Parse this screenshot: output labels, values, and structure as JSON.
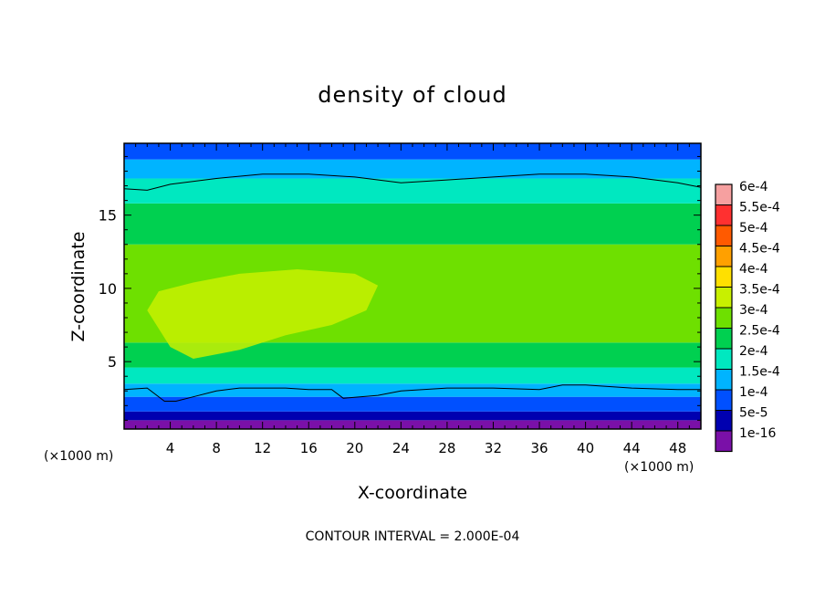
{
  "chart_data": {
    "type": "heatmap",
    "title": "density of cloud",
    "xlabel": "X-coordinate",
    "ylabel": "Z-coordinate",
    "x_unit": "(×1000 m)",
    "y_unit": "(×1000 m)",
    "xlim": [
      0,
      50
    ],
    "ylim": [
      0.4,
      19.9
    ],
    "x_ticks": [
      4,
      8,
      12,
      16,
      20,
      24,
      28,
      32,
      36,
      40,
      44,
      48
    ],
    "y_ticks": [
      5,
      10,
      15
    ],
    "footer": "CONTOUR INTERVAL = 2.000E-04",
    "colorbar": {
      "labels": [
        "6e-4",
        "5.5e-4",
        "5e-4",
        "4.5e-4",
        "4e-4",
        "3.5e-4",
        "3e-4",
        "2.5e-4",
        "2e-4",
        "1.5e-4",
        "1e-4",
        "5e-5",
        "1e-16"
      ],
      "colors": [
        "#f6a0a0",
        "#ff3030",
        "#ff5a00",
        "#ffa000",
        "#ffe000",
        "#c8f000",
        "#6ee000",
        "#00d050",
        "#00e8c0",
        "#00b4ff",
        "#0050ff",
        "#0000b0",
        "#7a10a8"
      ]
    },
    "contour_lines": [
      {
        "level": "2e-4",
        "x": [
          0,
          2,
          4,
          8,
          12,
          16,
          20,
          24,
          28,
          32,
          36,
          40,
          44,
          48,
          50
        ],
        "z": [
          16.8,
          16.7,
          17.1,
          17.5,
          17.8,
          17.8,
          17.6,
          17.2,
          17.4,
          17.6,
          17.8,
          17.8,
          17.6,
          17.2,
          16.9
        ]
      },
      {
        "level": "5e-5",
        "x": [
          0,
          2,
          3.5,
          4.5,
          6,
          8,
          10,
          14,
          16,
          18,
          19,
          22,
          24,
          28,
          32,
          36,
          38,
          40,
          44,
          48,
          50
        ],
        "z": [
          3.1,
          3.2,
          2.3,
          2.3,
          2.6,
          3.0,
          3.2,
          3.2,
          3.1,
          3.1,
          2.5,
          2.7,
          3.0,
          3.2,
          3.2,
          3.1,
          3.4,
          3.4,
          3.2,
          3.1,
          3.1
        ]
      }
    ],
    "bands": [
      {
        "level": "1e-16",
        "zlo": 0.4,
        "zhi": 1.0
      },
      {
        "level": "5e-5",
        "zlo": 1.0,
        "zhi": 1.6
      },
      {
        "level": "1e-4",
        "zlo": 1.6,
        "zhi": 2.6
      },
      {
        "level": "1.5e-4",
        "zlo": 2.6,
        "zhi": 3.5
      },
      {
        "level": "2e-4",
        "zlo": 3.5,
        "zhi": 4.6
      },
      {
        "level": "2.5e-4",
        "zlo": 4.6,
        "zhi": 6.3
      },
      {
        "level": "3e-4",
        "zlo": 6.3,
        "zhi": 13.0
      },
      {
        "level": "2.5e-4",
        "zlo": 13.0,
        "zhi": 15.8
      },
      {
        "level": "2e-4",
        "zlo": 15.8,
        "zhi": 17.5
      },
      {
        "level": "1.5e-4",
        "zlo": 17.5,
        "zhi": 18.8
      },
      {
        "level": "1e-4",
        "zlo": 18.8,
        "zhi": 19.9
      }
    ],
    "max_regions": [
      {
        "level": "3.5e-4",
        "x": [
          2,
          4,
          6,
          10,
          14,
          18,
          21,
          22,
          20,
          15,
          10,
          6,
          3
        ],
        "z": [
          8.5,
          6.0,
          5.2,
          5.8,
          6.8,
          7.5,
          8.5,
          10.2,
          11.0,
          11.3,
          11.0,
          10.4,
          9.8
        ]
      }
    ]
  }
}
